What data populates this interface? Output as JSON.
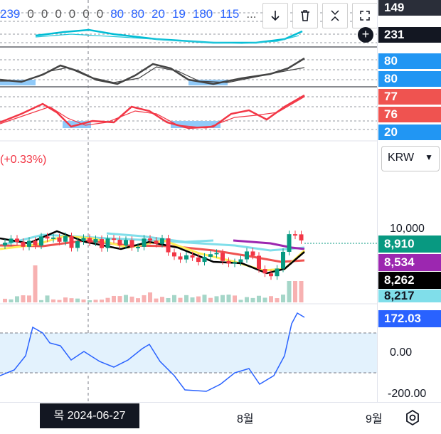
{
  "legend": {
    "items": [
      "239",
      "0",
      "0",
      "0",
      "0",
      "0",
      "0",
      "80",
      "80",
      "20",
      "19",
      "180",
      "115",
      "..."
    ]
  },
  "toolbar": {
    "buttons": [
      {
        "name": "arrow-down-icon"
      },
      {
        "name": "trash-icon"
      },
      {
        "name": "collapse-icon"
      },
      {
        "name": "maximize-icon"
      }
    ]
  },
  "price_scale": {
    "badges": [
      {
        "text": "149",
        "color": "#2a2e39"
      },
      {
        "text": "231",
        "color": "#131722"
      },
      {
        "text": "80",
        "color": "#2196f3"
      },
      {
        "text": "80",
        "color": "#2196f3"
      },
      {
        "text": "77",
        "color": "#ef5350"
      },
      {
        "text": "76",
        "color": "#ef5350"
      },
      {
        "text": "20",
        "color": "#2196f3"
      }
    ],
    "currency": "KRW",
    "price_tick": "10,000",
    "price_badges": [
      {
        "text": "8,910",
        "color": "#089981"
      },
      {
        "text": "8,534",
        "color": "#9c27b0"
      },
      {
        "text": "8,262",
        "color": "#000000"
      },
      {
        "text": "8,217",
        "color": "#80deea"
      }
    ],
    "cci_badge": {
      "text": "172.03",
      "color": "#2962ff"
    },
    "cci_ticks": [
      "0.00",
      "-200.00"
    ]
  },
  "change_text": "(+0.33%)",
  "time_axis": {
    "crosshair_date": "목 2024-06-27",
    "month_8": "8월",
    "month_9": "9월"
  },
  "colors": {
    "up": "#089981",
    "down": "#f23645",
    "accent": "#2962ff"
  }
}
